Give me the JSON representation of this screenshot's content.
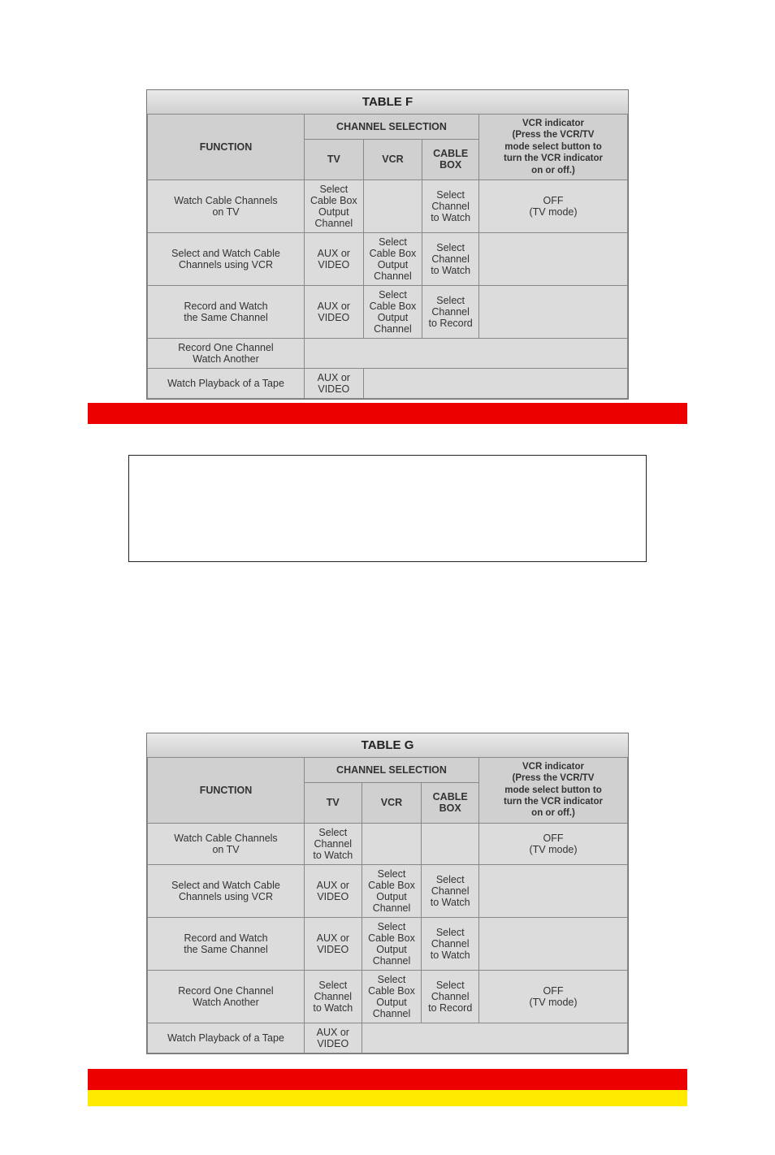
{
  "tables": [
    {
      "title": "TABLE F",
      "header": {
        "function": "FUNCTION",
        "channel_selection": "CHANNEL SELECTION",
        "tv": "TV",
        "vcr": "VCR",
        "cable_box": "CABLE BOX",
        "indicator_line1": "VCR",
        "indicator_line1b": "indicator",
        "indicator_line2": "(Press the VCR/TV",
        "indicator_line3": "mode select button to",
        "indicator_line4": "turn the VCR indicator",
        "indicator_line5": "on or off.)"
      },
      "rows": [
        {
          "func_l1": "Watch Cable Channels",
          "func_l2": "on TV",
          "tv_l1": "Select Cable Box",
          "tv_l2": "Output Channel",
          "vcr_l1": "",
          "vcr_l2": "",
          "cb_l1": "Select Channel",
          "cb_l2": "to Watch",
          "ind_l1": "OFF",
          "ind_l2": "(TV mode)"
        },
        {
          "func_l1": "Select and Watch Cable",
          "func_l2": "Channels using VCR",
          "tv_l1": "AUX or VIDEO",
          "tv_l2": "",
          "vcr_l1": "Select Cable Box",
          "vcr_l2": "Output Channel",
          "cb_l1": "Select Channel",
          "cb_l2": "to Watch",
          "ind_l1": "",
          "ind_l2": ""
        },
        {
          "func_l1": "Record and Watch",
          "func_l2": "the Same Channel",
          "tv_l1": "AUX or VIDEO",
          "tv_l2": "",
          "vcr_l1": "Select Cable Box",
          "vcr_l2": "Output Channel",
          "cb_l1": "Select Channel",
          "cb_l2": "to Record",
          "ind_l1": "",
          "ind_l2": ""
        },
        {
          "func_l1": "Record One Channel",
          "func_l2": "Watch Another",
          "tv_l1": "",
          "tv_l2": "",
          "vcr_l1": "",
          "vcr_l2": "",
          "cb_l1": "",
          "cb_l2": "",
          "ind_l1": "",
          "ind_l2": ""
        },
        {
          "func_l1": "Watch Playback of a Tape",
          "func_l2": "",
          "tv_l1": "AUX or VIDEO",
          "tv_l2": "",
          "vcr_l1": "",
          "vcr_l2": "",
          "cb_l1": "",
          "cb_l2": "",
          "ind_l1": "",
          "ind_l2": ""
        }
      ]
    },
    {
      "title": "TABLE G",
      "header": {
        "function": "FUNCTION",
        "channel_selection": "CHANNEL SELECTION",
        "tv": "TV",
        "vcr": "VCR",
        "cable_box": "CABLE BOX",
        "indicator_line1": "VCR",
        "indicator_line1b": "indicator",
        "indicator_line2": "(Press the VCR/TV",
        "indicator_line3": "mode select button to",
        "indicator_line4": "turn the VCR indicator",
        "indicator_line5": "on or off.)"
      },
      "rows": [
        {
          "func_l1": "Watch Cable Channels",
          "func_l2": "on TV",
          "tv_l1": "Select Channel",
          "tv_l2": "to Watch",
          "vcr_l1": "",
          "vcr_l2": "",
          "cb_l1": "",
          "cb_l2": "",
          "ind_l1": "OFF",
          "ind_l2": "(TV mode)"
        },
        {
          "func_l1": "Select and Watch Cable",
          "func_l2": "Channels using VCR",
          "tv_l1": "AUX or VIDEO",
          "tv_l2": "",
          "vcr_l1": "Select Cable Box",
          "vcr_l2": "Output Channel",
          "cb_l1": "Select Channel",
          "cb_l2": "to Watch",
          "ind_l1": "",
          "ind_l2": ""
        },
        {
          "func_l1": "Record and Watch",
          "func_l2": "the Same Channel",
          "tv_l1": "AUX or VIDEO",
          "tv_l2": "",
          "vcr_l1": "Select Cable Box",
          "vcr_l2": "Output Channel",
          "cb_l1": "Select Channel",
          "cb_l2": "to Watch",
          "ind_l1": "",
          "ind_l2": ""
        },
        {
          "func_l1": "Record One Channel",
          "func_l2": "Watch Another",
          "tv_l1": "Select Channel",
          "tv_l2": "to Watch",
          "vcr_l1": "Select Cable Box",
          "vcr_l2": "Output Channel",
          "cb_l1": "Select Channel",
          "cb_l2": "to Record",
          "ind_l1": "OFF",
          "ind_l2": "(TV mode)"
        },
        {
          "func_l1": "Watch Playback of a Tape",
          "func_l2": "",
          "tv_l1": "AUX or VIDEO",
          "tv_l2": "",
          "vcr_l1": "",
          "vcr_l2": "",
          "cb_l1": "",
          "cb_l2": "",
          "ind_l1": "",
          "ind_l2": ""
        }
      ]
    }
  ],
  "colors": {
    "red_bar": "#ec0000",
    "yellow_bar": "#ffea00",
    "table_bg": "#dcdcdc",
    "border": "#888888"
  }
}
